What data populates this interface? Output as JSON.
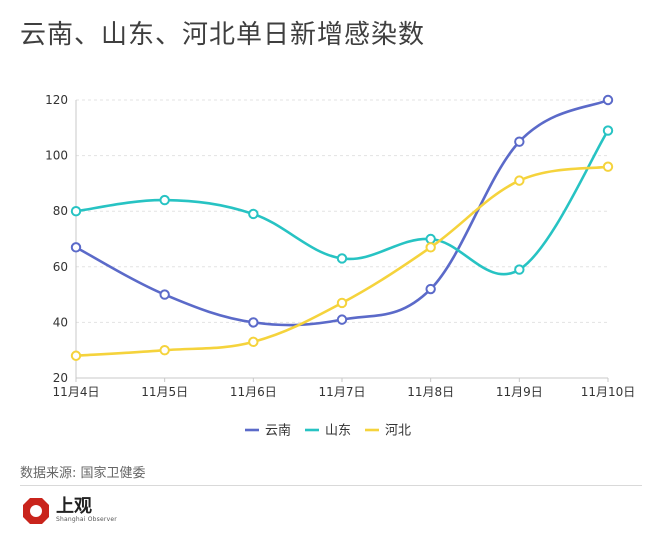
{
  "title": "云南、山东、河北单日新增感染数",
  "source": "数据来源: 国家卫健委",
  "logo": {
    "text": "上观",
    "subtext": "Shanghai Observer"
  },
  "chart_data": {
    "type": "line",
    "title": "云南、山东、河北单日新增感染数",
    "xlabel": "",
    "ylabel": "",
    "categories": [
      "11月4日",
      "11月5日",
      "11月6日",
      "11月7日",
      "11月8日",
      "11月9日",
      "11月10日"
    ],
    "ylim": [
      20,
      120
    ],
    "yticks": [
      20,
      40,
      60,
      80,
      100,
      120
    ],
    "grid": true,
    "legend_position": "bottom",
    "series": [
      {
        "name": "云南",
        "color": "#5b6ac9",
        "values": [
          67,
          50,
          40,
          41,
          52,
          105,
          120
        ]
      },
      {
        "name": "山东",
        "color": "#27c3c3",
        "values": [
          80,
          84,
          79,
          63,
          70,
          59,
          109
        ]
      },
      {
        "name": "河北",
        "color": "#f5d33c",
        "values": [
          28,
          30,
          33,
          47,
          67,
          91,
          96
        ]
      }
    ]
  }
}
